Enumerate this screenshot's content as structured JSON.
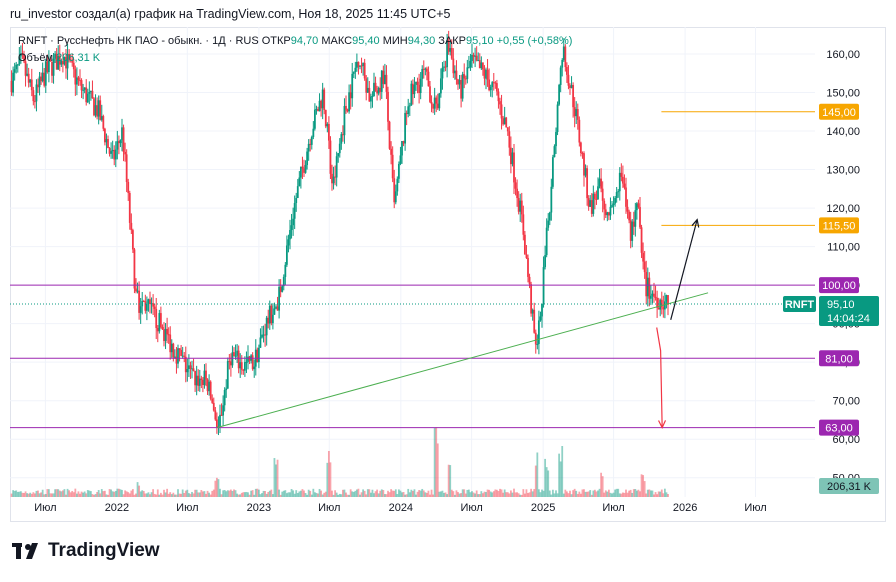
{
  "header": {
    "attribution": "ru_investor создал(а) график на TradingView.com, Ноя 18, 2025 11:45 UTC+5"
  },
  "legend": {
    "symbol": "RNFT · РуссНефть НК ПАО - обыкн. · 1Д · RUS",
    "open_label": "ОТКР",
    "open": "94,70",
    "high_label": "МАКС",
    "high": "95,40",
    "low_label": "МИН",
    "low": "94,30",
    "close_label": "ЗАКР",
    "close": "95,10",
    "change": "+0,55 (+0,58%)",
    "volume_label": "Объём",
    "volume": "206,31 K"
  },
  "colors": {
    "up": "#089981",
    "down": "#f23645",
    "orange": "#f7a600",
    "purple": "#9c27b0",
    "trend": "#4caf50",
    "arrow_down": "#f23645",
    "arrow_up": "#131722"
  },
  "chart_data": {
    "type": "candlestick",
    "symbol": "RNFT",
    "y_ticks": [
      "50,00",
      "60,00",
      "70,00",
      "80,00",
      "90,00",
      "100,00",
      "110,00",
      "120,00",
      "130,00",
      "140,00",
      "150,00",
      "160,00"
    ],
    "y_tick_values": [
      50,
      60,
      70,
      80,
      90,
      100,
      110,
      120,
      130,
      140,
      150,
      160
    ],
    "x_ticks": [
      "Июл",
      "2022",
      "Июл",
      "2023",
      "Июл",
      "2024",
      "Июл",
      "2025",
      "Июл",
      "2026",
      "Июл"
    ],
    "x_tick_dates": [
      "2021-07-01",
      "2022-01-01",
      "2022-07-01",
      "2023-01-01",
      "2023-07-01",
      "2024-01-01",
      "2024-07-01",
      "2025-01-01",
      "2025-07-01",
      "2026-01-01",
      "2026-07-01"
    ],
    "y_range": [
      45,
      167
    ],
    "x_range": [
      "2021-04-01",
      "2026-12-01"
    ],
    "price_path": [
      [
        "2021-04-05",
        153
      ],
      [
        "2021-05-01",
        158
      ],
      [
        "2021-06-01",
        148
      ],
      [
        "2021-07-01",
        155
      ],
      [
        "2021-08-15",
        160
      ],
      [
        "2021-10-01",
        151
      ],
      [
        "2021-11-15",
        145
      ],
      [
        "2021-12-20",
        132
      ],
      [
        "2022-01-15",
        140
      ],
      [
        "2022-02-20",
        96
      ],
      [
        "2022-03-15",
        95
      ],
      [
        "2022-04-20",
        90
      ],
      [
        "2022-05-25",
        84
      ],
      [
        "2022-06-20",
        80
      ],
      [
        "2022-07-15",
        76
      ],
      [
        "2022-08-20",
        75
      ],
      [
        "2022-09-20",
        63
      ],
      [
        "2022-10-20",
        82
      ],
      [
        "2022-11-20",
        79
      ],
      [
        "2022-12-20",
        80
      ],
      [
        "2023-01-20",
        90
      ],
      [
        "2023-02-20",
        96
      ],
      [
        "2023-04-01",
        120
      ],
      [
        "2023-05-15",
        140
      ],
      [
        "2023-06-15",
        150
      ],
      [
        "2023-07-10",
        125
      ],
      [
        "2023-08-10",
        145
      ],
      [
        "2023-09-15",
        160
      ],
      [
        "2023-10-15",
        148
      ],
      [
        "2023-11-20",
        155
      ],
      [
        "2023-12-15",
        120
      ],
      [
        "2024-01-20",
        148
      ],
      [
        "2024-03-01",
        155
      ],
      [
        "2024-04-01",
        145
      ],
      [
        "2024-05-01",
        163
      ],
      [
        "2024-06-01",
        150
      ],
      [
        "2024-07-01",
        158
      ],
      [
        "2024-08-01",
        155
      ],
      [
        "2024-09-01",
        150
      ],
      [
        "2024-10-01",
        140
      ],
      [
        "2024-11-10",
        115
      ],
      [
        "2024-12-15",
        81
      ],
      [
        "2025-01-10",
        112
      ],
      [
        "2025-02-20",
        162
      ],
      [
        "2025-03-25",
        145
      ],
      [
        "2025-05-01",
        120
      ],
      [
        "2025-05-25",
        125
      ],
      [
        "2025-06-25",
        118
      ],
      [
        "2025-07-20",
        128
      ],
      [
        "2025-08-15",
        113
      ],
      [
        "2025-09-01",
        123
      ],
      [
        "2025-09-20",
        100
      ],
      [
        "2025-10-15",
        97
      ],
      [
        "2025-11-18",
        95.1
      ]
    ],
    "horizontal_levels": [
      {
        "value": 145,
        "label": "145,00",
        "color": "orange"
      },
      {
        "value": 115.5,
        "label": "115,50",
        "color": "orange"
      },
      {
        "value": 100,
        "label": "100,00",
        "color": "purple"
      },
      {
        "value": 81,
        "label": "81,00",
        "color": "purple"
      },
      {
        "value": 63,
        "label": "63,00",
        "color": "purple"
      }
    ],
    "trendline": [
      [
        "2022-09-15",
        63
      ],
      [
        "2026-03-01",
        98
      ]
    ],
    "arrows": [
      {
        "path": [
          [
            "2025-11-25",
            91
          ],
          [
            "2026-02-01",
            117
          ]
        ],
        "color": "arrow_up"
      },
      {
        "path": [
          [
            "2025-10-20",
            89
          ],
          [
            "2025-10-30",
            83
          ],
          [
            "2025-11-03",
            63
          ]
        ],
        "color": "arrow_down"
      }
    ],
    "last_price": {
      "symbol_tag": "RNFT",
      "value": "95,10",
      "countdown": "14:04:24"
    },
    "volume_last": "206,31 K",
    "volume_spikes": [
      [
        "2022-02-25",
        0.25
      ],
      [
        "2022-09-15",
        0.3
      ],
      [
        "2023-02-15",
        0.6
      ],
      [
        "2023-07-01",
        0.75
      ],
      [
        "2024-04-01",
        1.0
      ],
      [
        "2024-05-05",
        0.6
      ],
      [
        "2024-12-15",
        0.7
      ],
      [
        "2025-01-10",
        0.55
      ],
      [
        "2025-02-15",
        0.75
      ],
      [
        "2025-06-01",
        0.35
      ],
      [
        "2025-09-15",
        0.35
      ]
    ]
  },
  "brand": {
    "name": "TradingView"
  }
}
